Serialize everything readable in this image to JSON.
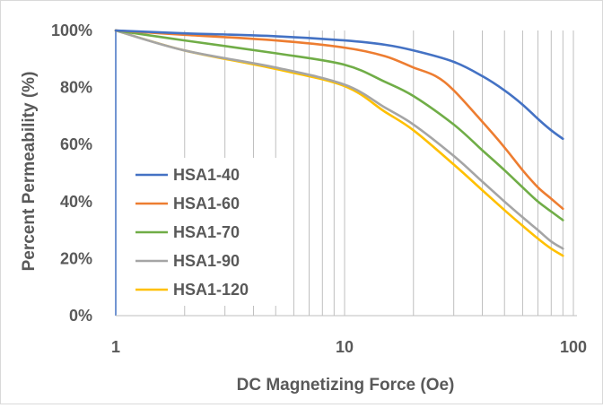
{
  "chart_data": {
    "type": "line",
    "title": "",
    "xlabel": "DC Magnetizing Force (Oe)",
    "ylabel": "Percent Permeability (%)",
    "x_scale": "log",
    "xlim": [
      1,
      100
    ],
    "ylim": [
      0,
      100
    ],
    "x_tick_labels": [
      "1",
      "10",
      "100"
    ],
    "y_tick_labels": [
      "0%",
      "20%",
      "40%",
      "60%",
      "80%",
      "100%"
    ],
    "grid": "vertical minor and major lines",
    "legend_position": "lower-left",
    "series": [
      {
        "name": "HSA1-40",
        "color": "#4472C4",
        "x": [
          1,
          2,
          5,
          10,
          15,
          20,
          30,
          40,
          50,
          60,
          70,
          80,
          90
        ],
        "y": [
          100,
          99,
          98,
          96.5,
          95,
          93,
          89,
          84,
          79,
          74,
          69,
          65,
          62
        ]
      },
      {
        "name": "HSA1-60",
        "color": "#ED7D31",
        "x": [
          1,
          2,
          5,
          10,
          15,
          20,
          25,
          30,
          40,
          50,
          60,
          70,
          80,
          90
        ],
        "y": [
          100,
          98.5,
          96.5,
          94,
          91,
          87,
          84,
          79,
          68,
          59,
          51,
          45,
          41,
          37.5
        ]
      },
      {
        "name": "HSA1-70",
        "color": "#70AD47",
        "x": [
          1,
          2,
          5,
          10,
          15,
          20,
          30,
          40,
          50,
          60,
          70,
          80,
          90
        ],
        "y": [
          100,
          96.5,
          92,
          88,
          82,
          77,
          67,
          58,
          51,
          45,
          40,
          36.5,
          33.5
        ]
      },
      {
        "name": "HSA1-90",
        "color": "#A5A5A5",
        "x": [
          1,
          2,
          5,
          10,
          15,
          20,
          30,
          40,
          50,
          60,
          70,
          80,
          90
        ],
        "y": [
          100,
          93,
          87,
          81,
          73,
          67,
          56,
          47,
          40,
          34.5,
          30,
          26,
          23.5
        ]
      },
      {
        "name": "HSA1-120",
        "color": "#FFC000",
        "x": [
          1,
          2,
          5,
          10,
          15,
          20,
          30,
          40,
          50,
          60,
          70,
          80,
          90
        ],
        "y": [
          100,
          93,
          86.5,
          80.5,
          71.5,
          65,
          53,
          44,
          37,
          31.5,
          27,
          23.5,
          21
        ]
      }
    ]
  }
}
